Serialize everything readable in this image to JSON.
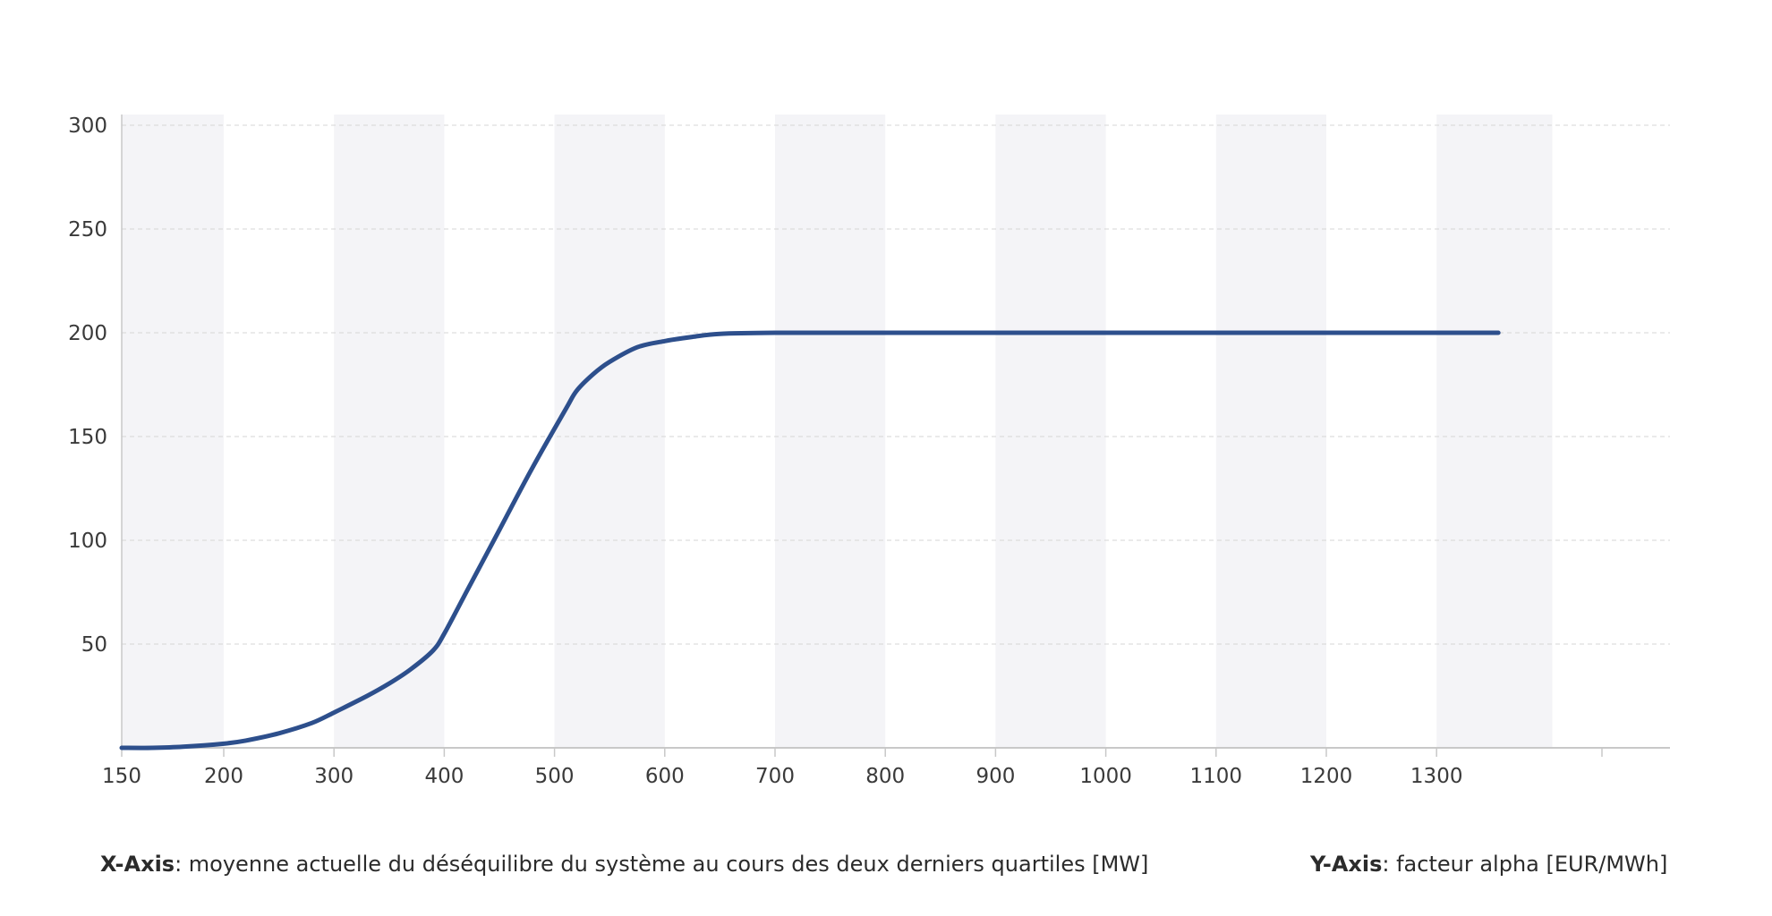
{
  "chart_data": {
    "type": "line",
    "x_ticks": [
      150,
      200,
      300,
      400,
      500,
      600,
      700,
      800,
      900,
      1000,
      1100,
      1200,
      1300
    ],
    "y_ticks": [
      50,
      100,
      150,
      200,
      250,
      300
    ],
    "xlim": [
      150,
      1450
    ],
    "ylim": [
      0,
      300
    ],
    "grid": true,
    "colors": {
      "line": "#2d4f8c",
      "band": "#f4f4f7",
      "grid": "#d6d6d6",
      "axis": "#c8c8c8"
    },
    "series": [
      {
        "points": [
          [
            150,
            0
          ],
          [
            165,
            0
          ],
          [
            180,
            0.5
          ],
          [
            200,
            2
          ],
          [
            220,
            3.5
          ],
          [
            250,
            7
          ],
          [
            280,
            12
          ],
          [
            300,
            17
          ],
          [
            330,
            25
          ],
          [
            350,
            31
          ],
          [
            370,
            38
          ],
          [
            390,
            47
          ],
          [
            400,
            55
          ],
          [
            420,
            75
          ],
          [
            450,
            105
          ],
          [
            480,
            135
          ],
          [
            510,
            163
          ],
          [
            520,
            172
          ],
          [
            535,
            180
          ],
          [
            550,
            186
          ],
          [
            575,
            193
          ],
          [
            600,
            196
          ],
          [
            625,
            198
          ],
          [
            650,
            199.5
          ],
          [
            700,
            200
          ],
          [
            800,
            200
          ],
          [
            900,
            200
          ],
          [
            1000,
            200
          ],
          [
            1100,
            200
          ],
          [
            1200,
            200
          ],
          [
            1300,
            200
          ],
          [
            1356,
            200
          ]
        ]
      }
    ],
    "footer_x": {
      "label": "X-Axis",
      "text": ": moyenne actuelle du déséquilibre du système au cours des deux derniers quartiles [MW]"
    },
    "footer_y": {
      "label": "Y-Axis",
      "text": ": facteur alpha [EUR/MWh]"
    }
  }
}
